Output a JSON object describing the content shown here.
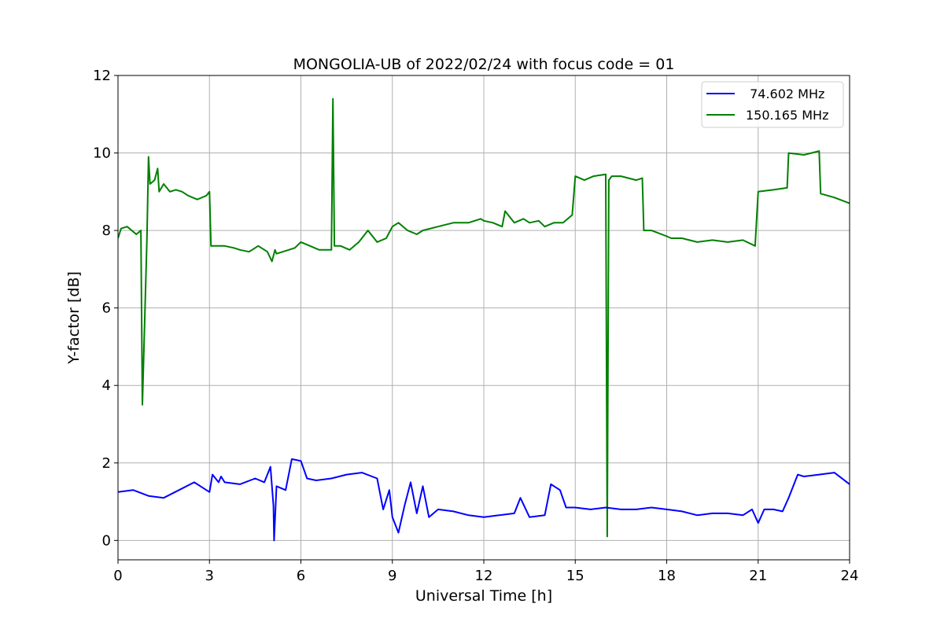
{
  "chart_data": {
    "type": "line",
    "title": "MONGOLIA-UB of 2022/02/24 with focus code = 01",
    "xlabel": "Universal Time [h]",
    "ylabel": "Y-factor [dB]",
    "xlim": [
      0,
      24
    ],
    "ylim": [
      -0.5,
      12
    ],
    "xticks": [
      0,
      3,
      6,
      9,
      12,
      15,
      18,
      21,
      24
    ],
    "yticks": [
      0,
      2,
      4,
      6,
      8,
      10,
      12
    ],
    "grid": true,
    "legend_position": "top-right",
    "series": [
      {
        "name": " 74.602 MHz",
        "color": "#0000ff",
        "x": [
          0,
          0.5,
          1.0,
          1.5,
          2.0,
          2.5,
          3.0,
          3.1,
          3.3,
          3.38,
          3.5,
          4.0,
          4.5,
          4.8,
          5.0,
          5.1,
          5.12,
          5.2,
          5.5,
          5.7,
          6.0,
          6.2,
          6.5,
          7.0,
          7.5,
          8.0,
          8.5,
          8.7,
          8.9,
          9.0,
          9.2,
          9.4,
          9.6,
          9.8,
          10.0,
          10.2,
          10.5,
          11.0,
          11.5,
          12.0,
          12.5,
          13.0,
          13.2,
          13.5,
          14.0,
          14.2,
          14.5,
          14.7,
          15.0,
          15.5,
          16.0,
          16.5,
          17.0,
          17.5,
          18.0,
          18.5,
          19.0,
          19.5,
          20.0,
          20.5,
          20.8,
          21.0,
          21.2,
          21.5,
          21.8,
          22.0,
          22.3,
          22.5,
          23.0,
          23.5,
          24.0
        ],
        "y": [
          1.25,
          1.3,
          1.15,
          1.1,
          1.3,
          1.5,
          1.25,
          1.7,
          1.5,
          1.65,
          1.5,
          1.45,
          1.6,
          1.5,
          1.9,
          0.9,
          0.0,
          1.4,
          1.3,
          2.1,
          2.05,
          1.6,
          1.55,
          1.6,
          1.7,
          1.75,
          1.6,
          0.8,
          1.3,
          0.6,
          0.2,
          0.9,
          1.5,
          0.7,
          1.4,
          0.6,
          0.8,
          0.75,
          0.65,
          0.6,
          0.65,
          0.7,
          1.1,
          0.6,
          0.65,
          1.45,
          1.3,
          0.85,
          0.85,
          0.8,
          0.85,
          0.8,
          0.8,
          0.85,
          0.8,
          0.75,
          0.65,
          0.7,
          0.7,
          0.65,
          0.8,
          0.45,
          0.8,
          0.8,
          0.75,
          1.1,
          1.7,
          1.65,
          1.7,
          1.75,
          1.45
        ]
      },
      {
        "name": "150.165 MHz",
        "color": "#008000",
        "x": [
          0,
          0.1,
          0.3,
          0.6,
          0.75,
          0.8,
          0.95,
          1.0,
          1.05,
          1.2,
          1.3,
          1.35,
          1.5,
          1.7,
          1.9,
          2.1,
          2.3,
          2.6,
          2.9,
          3.0,
          3.05,
          3.2,
          3.5,
          3.8,
          4.0,
          4.3,
          4.6,
          4.9,
          5.05,
          5.15,
          5.2,
          5.6,
          5.8,
          6.0,
          6.3,
          6.6,
          7.0,
          7.05,
          7.1,
          7.3,
          7.6,
          7.9,
          8.0,
          8.2,
          8.5,
          8.8,
          9.0,
          9.2,
          9.5,
          9.8,
          10.0,
          10.5,
          11.0,
          11.5,
          11.9,
          12.0,
          12.3,
          12.6,
          12.7,
          13.0,
          13.3,
          13.5,
          13.8,
          14.0,
          14.3,
          14.6,
          14.9,
          15.0,
          15.3,
          15.6,
          16.0,
          16.05,
          16.1,
          16.2,
          16.5,
          17.0,
          17.2,
          17.25,
          17.5,
          18.0,
          18.15,
          18.5,
          19.0,
          19.5,
          20.0,
          20.5,
          20.9,
          21.0,
          21.5,
          21.95,
          22.0,
          22.5,
          23.0,
          23.05,
          23.5,
          24.0
        ],
        "y": [
          7.8,
          8.05,
          8.1,
          7.9,
          8.0,
          3.5,
          7.8,
          9.9,
          9.2,
          9.3,
          9.6,
          9.0,
          9.2,
          9.0,
          9.05,
          9.0,
          8.9,
          8.8,
          8.9,
          9.0,
          7.6,
          7.6,
          7.6,
          7.55,
          7.5,
          7.45,
          7.6,
          7.45,
          7.2,
          7.5,
          7.4,
          7.5,
          7.55,
          7.7,
          7.6,
          7.5,
          7.5,
          11.4,
          7.6,
          7.6,
          7.5,
          7.7,
          7.8,
          8.0,
          7.7,
          7.8,
          8.1,
          8.2,
          8.0,
          7.9,
          8.0,
          8.1,
          8.2,
          8.2,
          8.3,
          8.25,
          8.2,
          8.1,
          8.5,
          8.2,
          8.3,
          8.2,
          8.25,
          8.1,
          8.2,
          8.2,
          8.4,
          9.4,
          9.3,
          9.4,
          9.45,
          0.1,
          9.3,
          9.4,
          9.4,
          9.3,
          9.35,
          8.0,
          8.0,
          7.85,
          7.8,
          7.8,
          7.7,
          7.75,
          7.7,
          7.75,
          7.6,
          9.0,
          9.05,
          9.1,
          10.0,
          9.95,
          10.05,
          8.95,
          8.85,
          8.7
        ]
      }
    ]
  }
}
